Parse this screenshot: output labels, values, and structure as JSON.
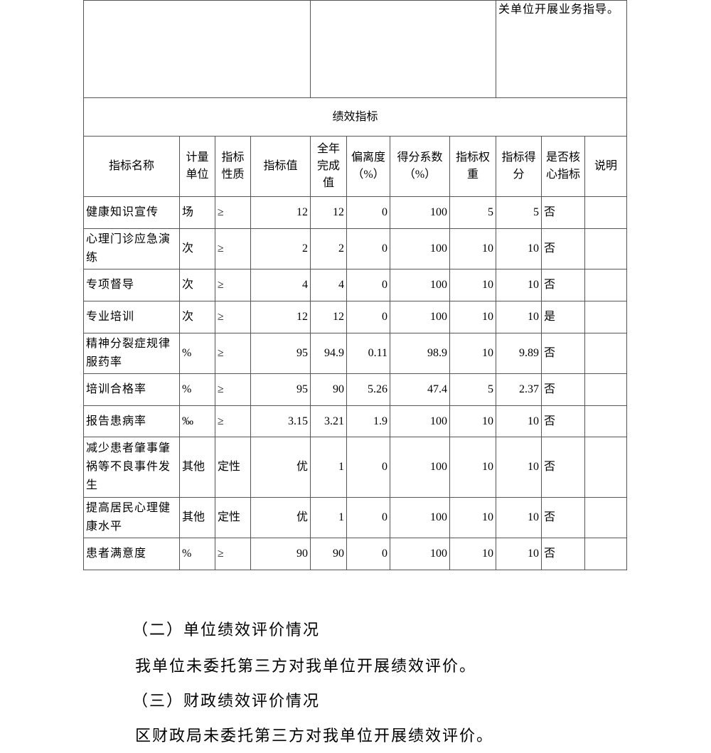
{
  "top_row": {
    "col3_text": "关单位开展业务指导。"
  },
  "section_title": "绩效指标",
  "headers": [
    "指标名称",
    "计量单位",
    "指标性质",
    "指标值",
    "全年完成值",
    "偏离度（%）",
    "得分系数（%）",
    "指标权重",
    "指标得分",
    "是否核心指标",
    "说明"
  ],
  "rows": [
    [
      "健康知识宣传",
      "场",
      "≥",
      "12",
      "12",
      "0",
      "100",
      "5",
      "5",
      "否",
      ""
    ],
    [
      "心理门诊应急演练",
      "次",
      "≥",
      "2",
      "2",
      "0",
      "100",
      "10",
      "10",
      "否",
      ""
    ],
    [
      "专项督导",
      "次",
      "≥",
      "4",
      "4",
      "0",
      "100",
      "10",
      "10",
      "否",
      ""
    ],
    [
      "专业培训",
      "次",
      "≥",
      "12",
      "12",
      "0",
      "100",
      "10",
      "10",
      "是",
      ""
    ],
    [
      "精神分裂症规律服药率",
      "%",
      "≥",
      "95",
      "94.9",
      "0.11",
      "98.9",
      "10",
      "9.89",
      "否",
      ""
    ],
    [
      "培训合格率",
      "%",
      "≥",
      "95",
      "90",
      "5.26",
      "47.4",
      "5",
      "2.37",
      "否",
      ""
    ],
    [
      "报告患病率",
      "‰",
      "≥",
      "3.15",
      "3.21",
      "1.9",
      "100",
      "10",
      "10",
      "否",
      ""
    ],
    [
      "减少患者肇事肇祸等不良事件发生",
      "其他",
      "定性",
      "优",
      "1",
      "0",
      "100",
      "10",
      "10",
      "否",
      ""
    ],
    [
      "提高居民心理健康水平",
      "其他",
      "定性",
      "优",
      "1",
      "0",
      "100",
      "10",
      "10",
      "否",
      ""
    ],
    [
      "患者满意度",
      "%",
      "≥",
      "90",
      "90",
      "0",
      "100",
      "10",
      "10",
      "否",
      ""
    ]
  ],
  "paragraphs": [
    "（二）单位绩效评价情况",
    "我单位未委托第三方对我单位开展绩效评价。",
    "（三）财政绩效评价情况",
    "区财政局未委托第三方对我单位开展绩效评价。"
  ]
}
